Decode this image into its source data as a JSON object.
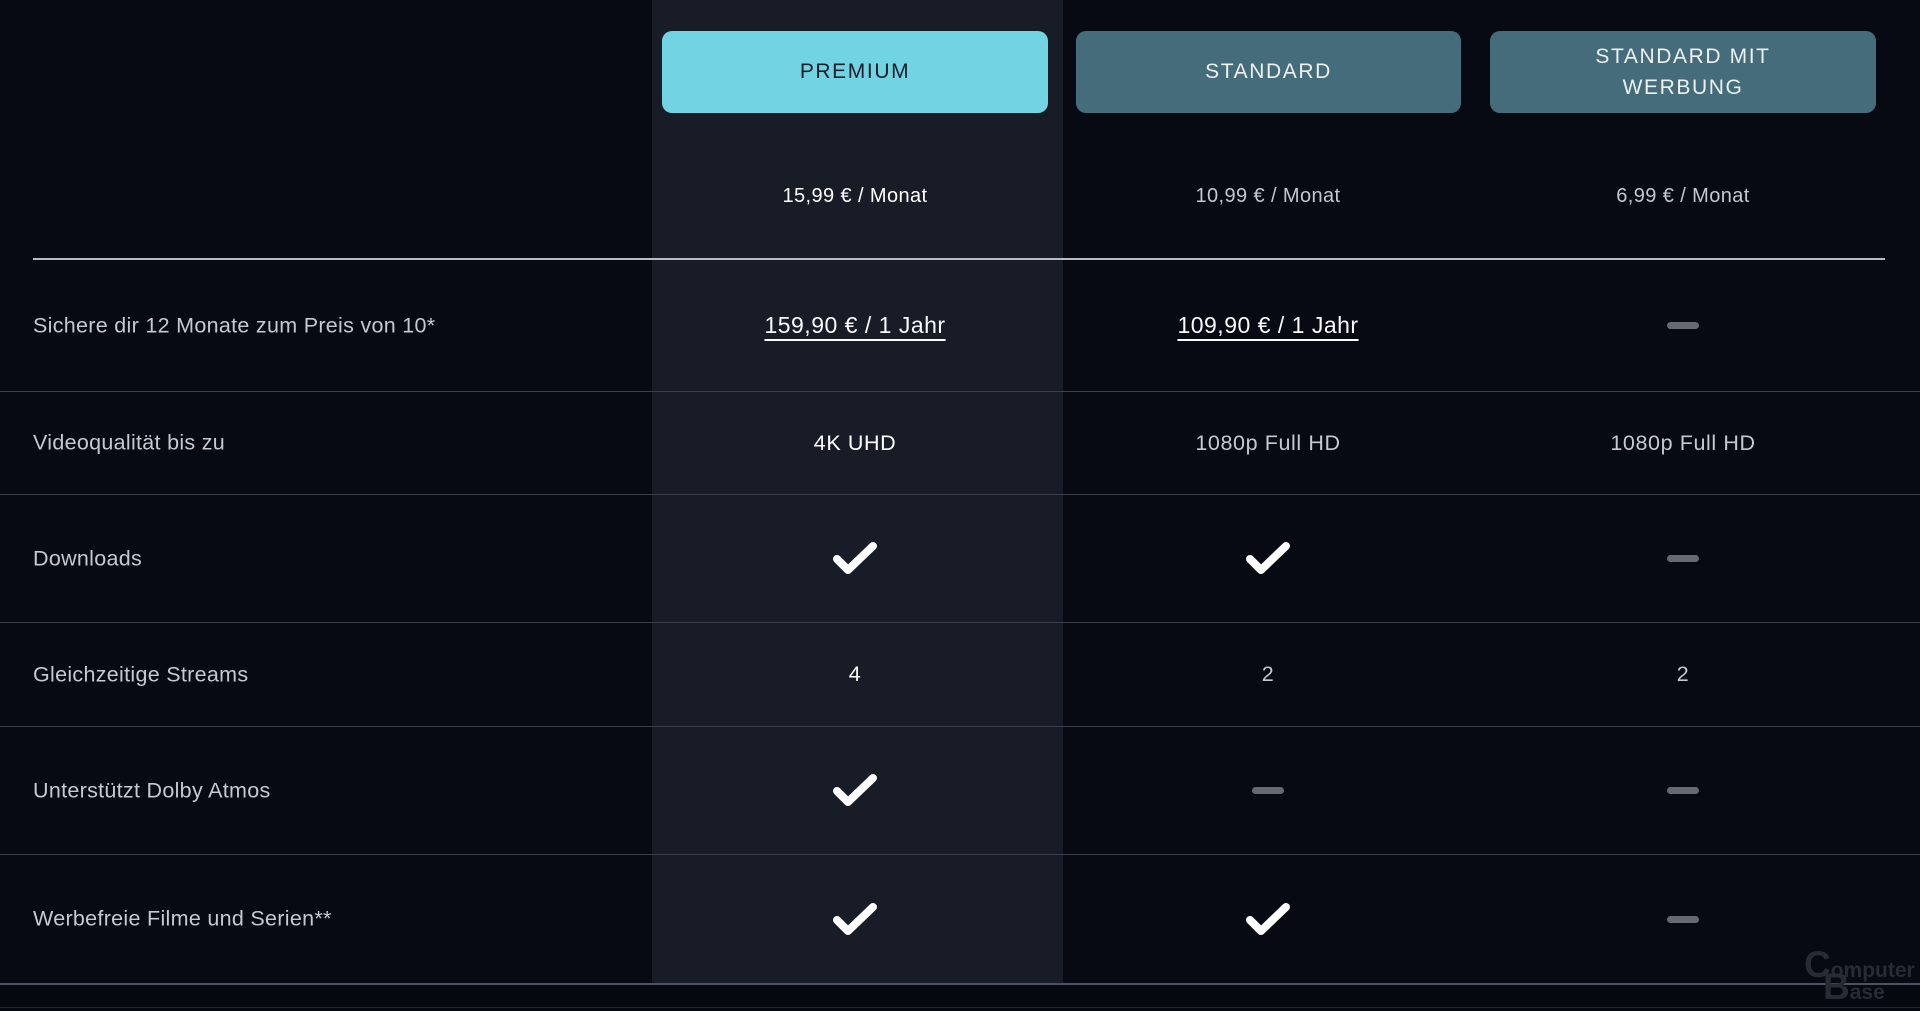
{
  "table": {
    "plans": [
      {
        "name": "PREMIUM",
        "price": "15,99 € / Monat",
        "highlighted": true
      },
      {
        "name": "STANDARD",
        "price": "10,99 € / Monat",
        "highlighted": false
      },
      {
        "name": "STANDARD MIT WERBUNG",
        "price": "6,99 € / Monat",
        "highlighted": false
      }
    ],
    "rows": [
      {
        "label": "Sichere dir 12 Monate zum Preis von 10*",
        "cells": [
          {
            "type": "link",
            "text": "159,90 € / 1 Jahr"
          },
          {
            "type": "link",
            "text": "109,90 € / 1 Jahr"
          },
          {
            "type": "none"
          }
        ]
      },
      {
        "label": "Videoqualität bis zu",
        "cells": [
          {
            "type": "text",
            "text": "4K UHD"
          },
          {
            "type": "text",
            "text": "1080p Full HD"
          },
          {
            "type": "text",
            "text": "1080p Full HD"
          }
        ]
      },
      {
        "label": "Downloads",
        "cells": [
          {
            "type": "check"
          },
          {
            "type": "check"
          },
          {
            "type": "none"
          }
        ]
      },
      {
        "label": "Gleichzeitige Streams",
        "cells": [
          {
            "type": "text",
            "text": "4"
          },
          {
            "type": "text",
            "text": "2"
          },
          {
            "type": "text",
            "text": "2"
          }
        ]
      },
      {
        "label": "Unterstützt Dolby Atmos",
        "cells": [
          {
            "type": "check"
          },
          {
            "type": "none"
          },
          {
            "type": "none"
          }
        ]
      },
      {
        "label": "Werbefreie Filme und Serien**",
        "cells": [
          {
            "type": "check"
          },
          {
            "type": "check"
          },
          {
            "type": "none"
          }
        ]
      }
    ]
  },
  "watermark": {
    "part1": "C",
    "part2": "omputer",
    "part3": "B",
    "part4": "ase"
  },
  "colors": {
    "page_bg": "#070a13",
    "highlight_column_bg": "#181c27",
    "accent_cyan": "#72d3e3",
    "plan_button_teal": "#456c7b",
    "check": "#ffffff",
    "dash": "#646973",
    "divider": "#3a3f4b",
    "strong_divider": "#b7bbc3"
  }
}
